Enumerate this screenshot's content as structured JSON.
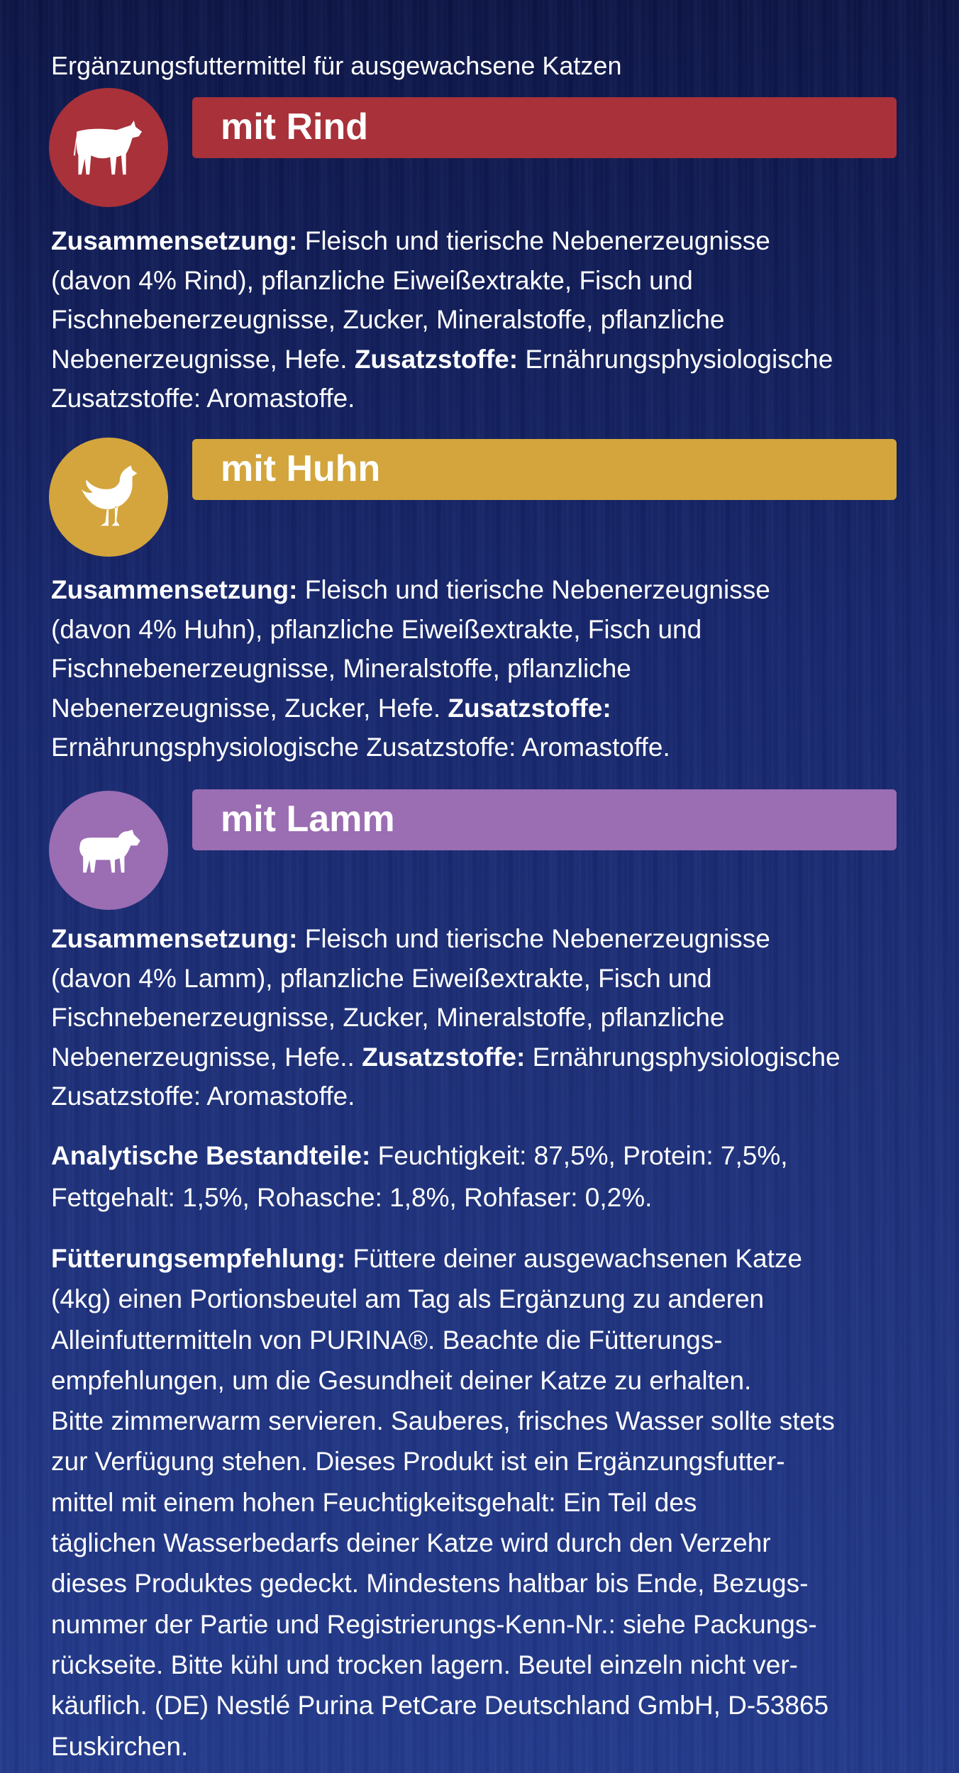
{
  "subtitle": "Ergänzungsfuttermittel für ausgewachsene Katzen",
  "variants": [
    {
      "label": "mit Rind",
      "color": "#a8313a",
      "icon": "cow-icon",
      "lines": [
        [
          {
            "b": true,
            "t": "Zusammensetzung:"
          },
          {
            "t": " Fleisch und tierische Nebenerzeugnisse"
          }
        ],
        [
          {
            "t": "(davon 4% Rind), pflanzliche Eiweißextrakte, Fisch und"
          }
        ],
        [
          {
            "t": "Fischnebenerzeugnisse, Zucker, Mineralstoffe, pflanzliche"
          }
        ],
        [
          {
            "t": "Nebenerzeugnisse, Hefe. "
          },
          {
            "b": true,
            "t": "Zusatzstoffe:"
          },
          {
            "t": " Ernährungsphysiologische"
          }
        ],
        [
          {
            "t": "Zusatzstoffe: Aromastoffe."
          }
        ]
      ]
    },
    {
      "label": "mit Huhn",
      "color": "#d3a53c",
      "icon": "chicken-icon",
      "lines": [
        [
          {
            "b": true,
            "t": "Zusammensetzung:"
          },
          {
            "t": " Fleisch und tierische Nebenerzeugnisse"
          }
        ],
        [
          {
            "t": "(davon 4% Huhn), pflanzliche Eiweißextrakte, Fisch und"
          }
        ],
        [
          {
            "t": "Fischnebenerzeugnisse, Mineralstoffe, pflanzliche"
          }
        ],
        [
          {
            "t": "Nebenerzeugnisse, Zucker, Hefe. "
          },
          {
            "b": true,
            "t": "Zusatzstoffe:"
          }
        ],
        [
          {
            "t": "Ernährungsphysiologische Zusatzstoffe: Aromastoffe."
          }
        ]
      ]
    },
    {
      "label": "mit Lamm",
      "color": "#9b6db3",
      "icon": "lamb-icon",
      "lines": [
        [
          {
            "b": true,
            "t": "Zusammensetzung:"
          },
          {
            "t": " Fleisch und tierische Nebenerzeugnisse"
          }
        ],
        [
          {
            "t": "(davon 4% Lamm), pflanzliche Eiweißextrakte, Fisch und"
          }
        ],
        [
          {
            "t": "Fischnebenerzeugnisse, Zucker, Mineralstoffe, pflanzliche"
          }
        ],
        [
          {
            "t": "Nebenerzeugnisse, Hefe.. "
          },
          {
            "b": true,
            "t": "Zusatzstoffe:"
          },
          {
            "t": " Ernährungsphysiologische"
          }
        ],
        [
          {
            "t": "Zusatzstoffe: Aromastoffe."
          }
        ]
      ]
    }
  ],
  "analytics": {
    "lines": [
      [
        {
          "b": true,
          "t": "Analytische Bestandteile:"
        },
        {
          "t": " Feuchtigkeit: 87,5%, Protein: 7,5%,"
        }
      ],
      [
        {
          "t": "Fettgehalt: 1,5%, Rohasche: 1,8%, Rohfaser: 0,2%."
        }
      ]
    ]
  },
  "feeding": {
    "lines": [
      [
        {
          "b": true,
          "t": "Fütterungsempfehlung:"
        },
        {
          "t": " Füttere deiner ausgewachsenen Katze"
        }
      ],
      [
        {
          "t": "(4kg) einen Portionsbeutel am Tag als Ergänzung zu anderen"
        }
      ],
      [
        {
          "t": "Alleinfuttermitteln von PURINA®. Beachte die Fütterungs-"
        }
      ],
      [
        {
          "t": "empfehlungen, um die Gesundheit deiner Katze zu erhalten."
        }
      ],
      [
        {
          "t": "Bitte zimmerwarm servieren. Sauberes, frisches Wasser sollte stets"
        }
      ],
      [
        {
          "t": "zur Verfügung stehen. Dieses Produkt ist ein Ergänzungsfutter-"
        }
      ],
      [
        {
          "t": "mittel mit einem hohen Feuchtigkeitsgehalt: Ein Teil des"
        }
      ],
      [
        {
          "t": "täglichen Wasserbedarfs deiner Katze wird durch den Verzehr"
        }
      ],
      [
        {
          "t": "dieses Produktes gedeckt. Mindestens haltbar bis Ende, Bezugs-"
        }
      ],
      [
        {
          "t": "nummer der Partie und Registrierungs-Kenn-Nr.: siehe Packungs-"
        }
      ],
      [
        {
          "t": "rückseite. Bitte kühl und trocken lagern. Beutel einzeln nicht ver-"
        }
      ],
      [
        {
          "t": "käuflich. (DE) Nestlé Purina PetCare Deutschland GmbH, D-53865"
        }
      ],
      [
        {
          "t": "Euskirchen."
        }
      ]
    ]
  }
}
